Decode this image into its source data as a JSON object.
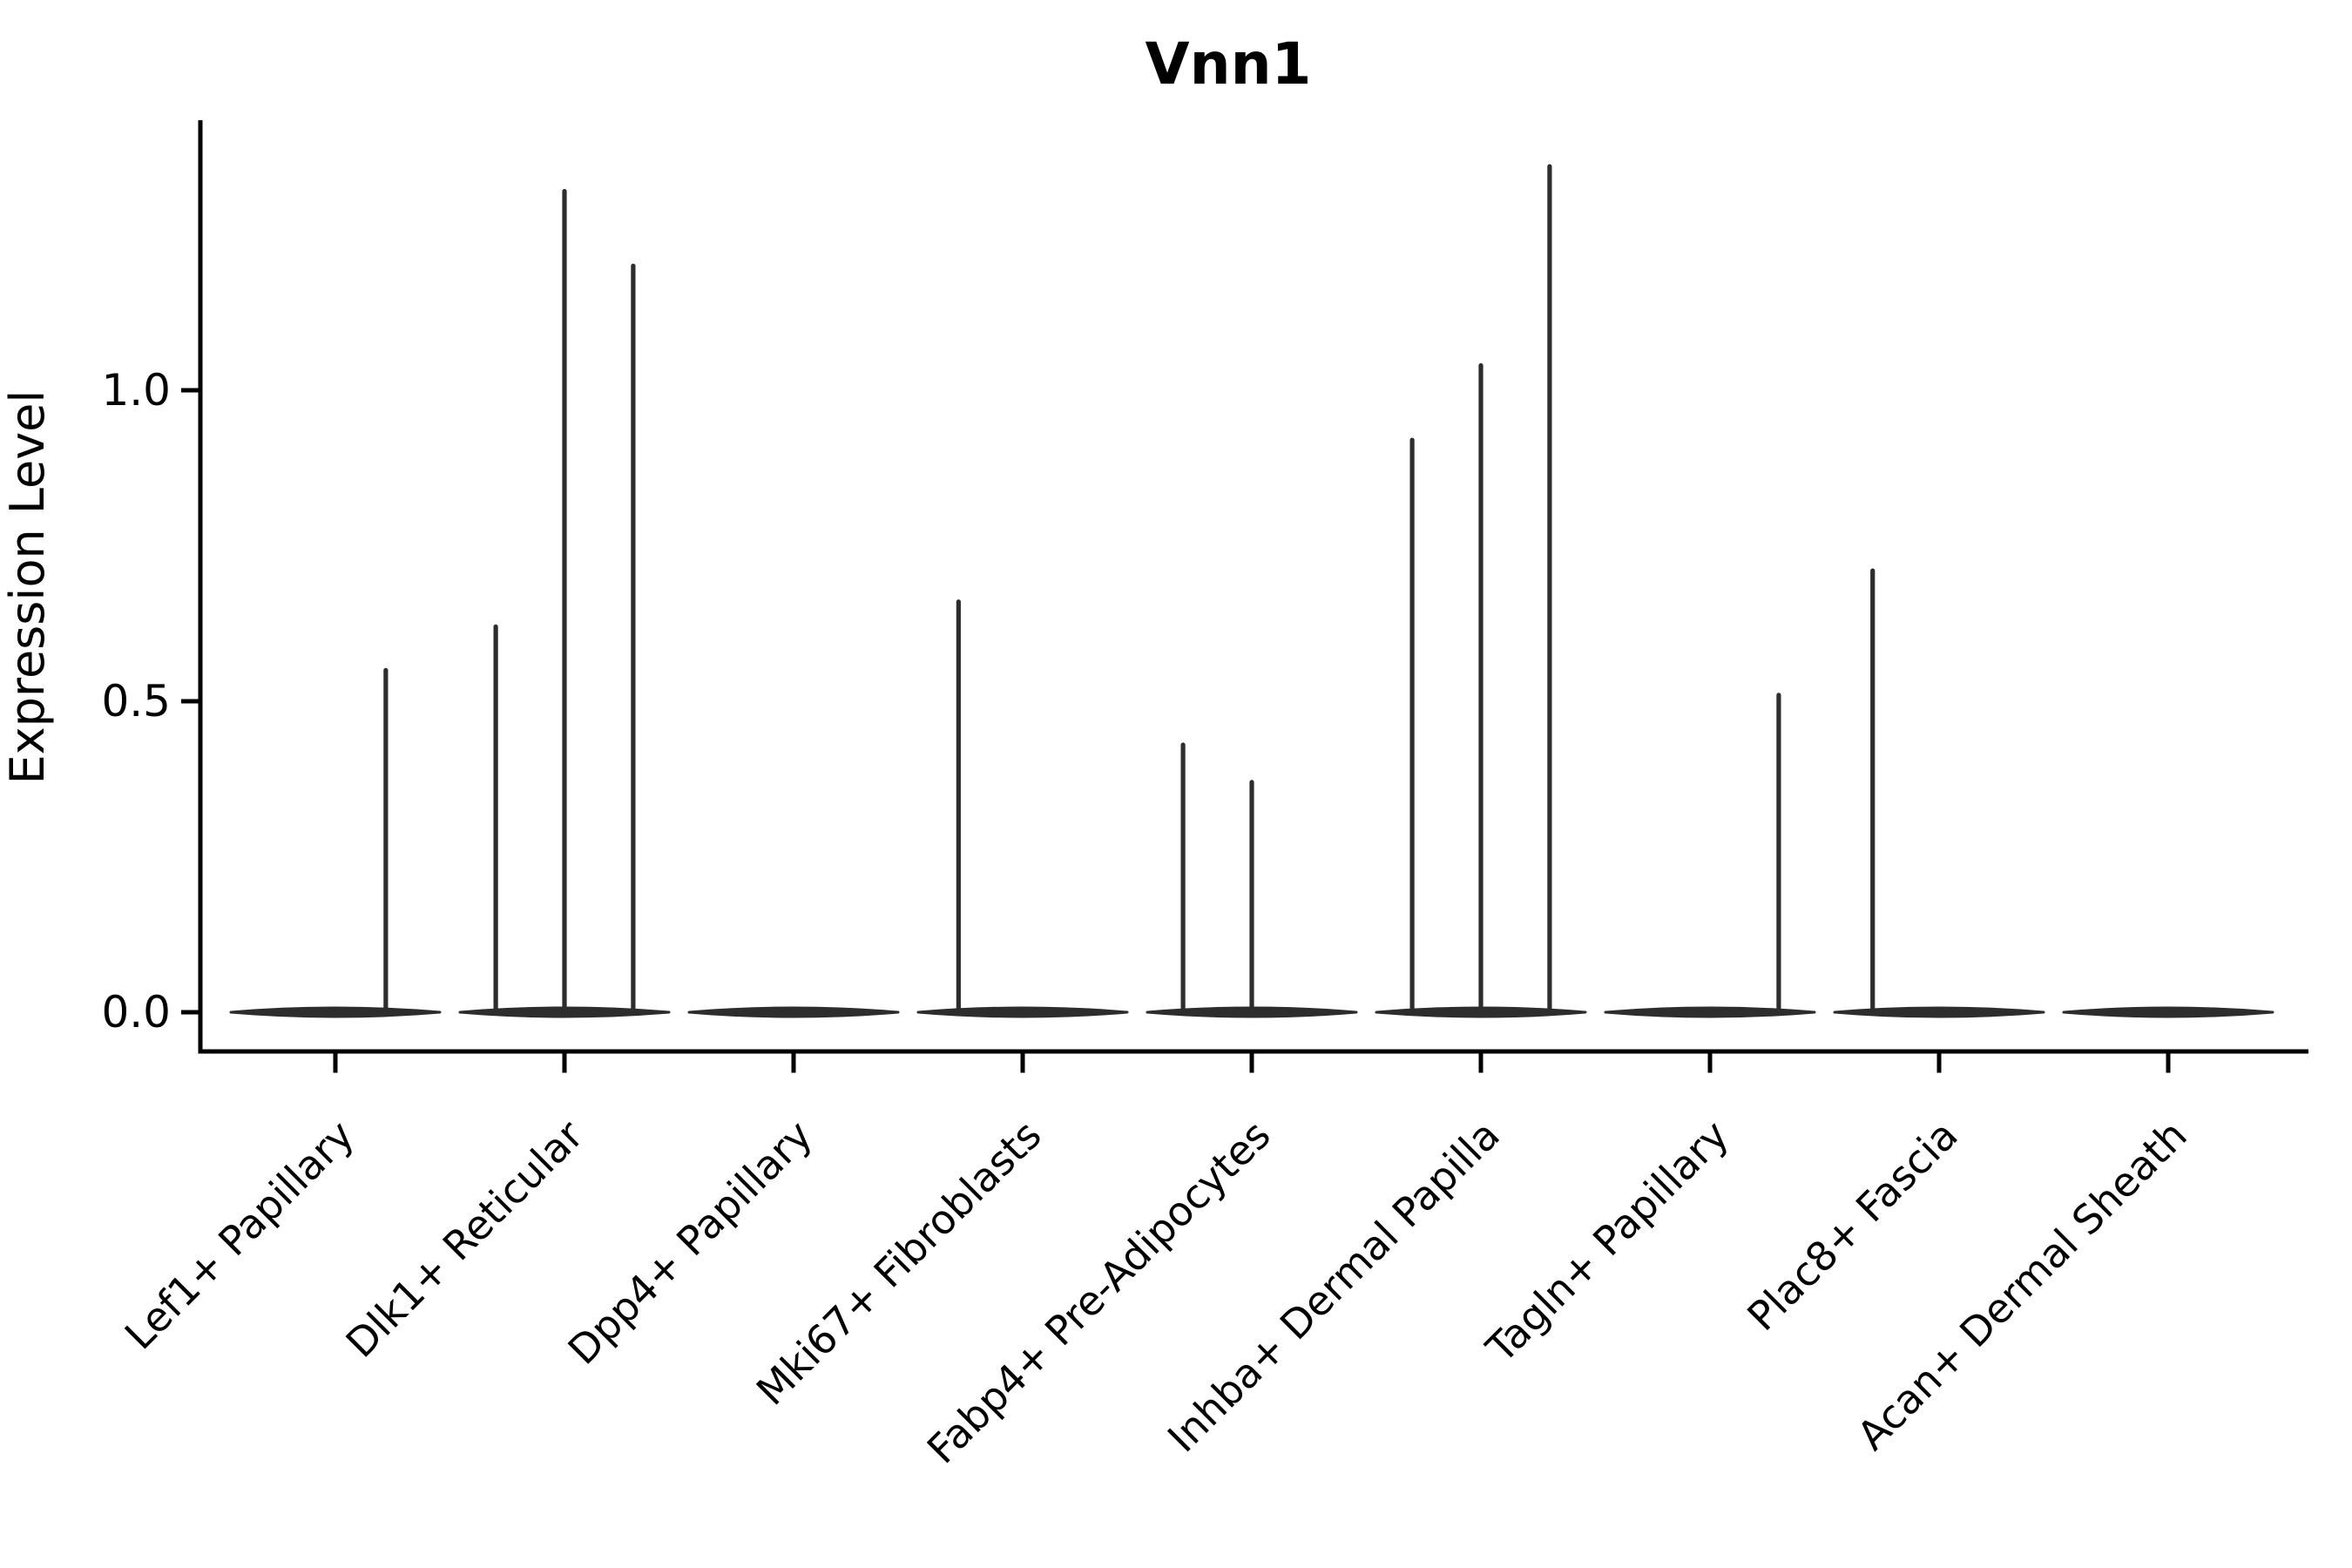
{
  "chart_data": {
    "type": "violin",
    "title": "Vnn1",
    "ylabel": "Expression Level",
    "xlabel": "",
    "grid": false,
    "legend": null,
    "ylim": [
      -0.06,
      1.43
    ],
    "yticks": [
      "0.0",
      "0.5",
      "1.0"
    ],
    "ytick_values": [
      0.0,
      0.5,
      1.0
    ],
    "categories": [
      "Lef1+ Papillary",
      "Dlk1+ Reticular",
      "Dpp4+ Papillary",
      "Mki67+ Fibroblasts",
      "Fabp4+ Pre-Adipocytes",
      "Inhba+ Dermal Papilla",
      "Tagln+ Papillary",
      "Plac8+ Fascia",
      "Acan+ Dermal Sheath"
    ],
    "violins": [
      {
        "category": "Lef1+ Papillary",
        "baseline_value": 0.0,
        "spikes": [
          {
            "offset": 0.22,
            "value": 0.55
          }
        ]
      },
      {
        "category": "Dlk1+ Reticular",
        "baseline_value": 0.0,
        "spikes": [
          {
            "offset": -0.3,
            "value": 0.62
          },
          {
            "offset": 0.0,
            "value": 1.32
          },
          {
            "offset": 0.3,
            "value": 1.2
          }
        ]
      },
      {
        "category": "Dpp4+ Papillary",
        "baseline_value": 0.0,
        "spikes": []
      },
      {
        "category": "Mki67+ Fibroblasts",
        "baseline_value": 0.0,
        "spikes": [
          {
            "offset": -0.28,
            "value": 0.66
          }
        ]
      },
      {
        "category": "Fabp4+ Pre-Adipocytes",
        "baseline_value": 0.0,
        "spikes": [
          {
            "offset": -0.3,
            "value": 0.43
          },
          {
            "offset": 0.0,
            "value": 0.37
          }
        ]
      },
      {
        "category": "Inhba+ Dermal Papilla",
        "baseline_value": 0.0,
        "spikes": [
          {
            "offset": -0.3,
            "value": 0.92
          },
          {
            "offset": 0.0,
            "value": 1.04
          },
          {
            "offset": 0.3,
            "value": 1.36
          }
        ]
      },
      {
        "category": "Tagln+ Papillary",
        "baseline_value": 0.0,
        "spikes": [
          {
            "offset": 0.3,
            "value": 0.51
          }
        ]
      },
      {
        "category": "Plac8+ Fascia",
        "baseline_value": 0.0,
        "spikes": [
          {
            "offset": -0.29,
            "value": 0.71
          }
        ]
      },
      {
        "category": "Acan+ Dermal Sheath",
        "baseline_value": 0.0,
        "spikes": []
      }
    ],
    "colors": {
      "violin": "#2d2d2d",
      "axis": "#000000",
      "text": "#000000",
      "background": "#ffffff"
    }
  }
}
